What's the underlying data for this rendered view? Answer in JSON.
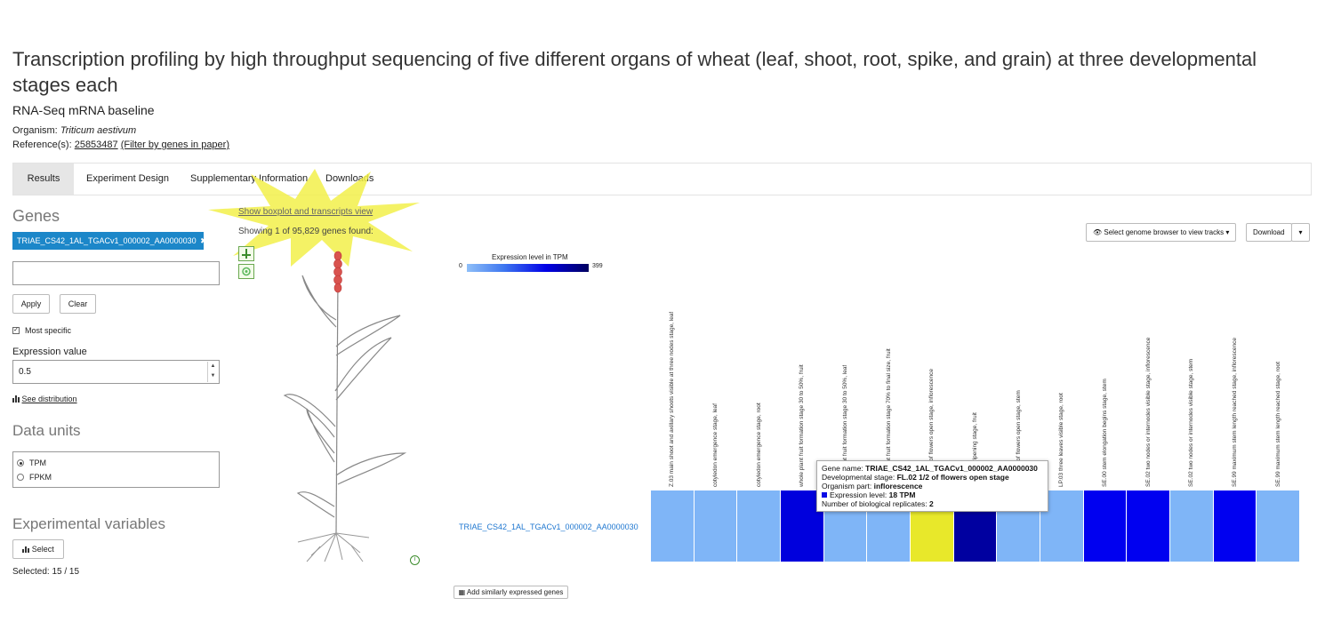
{
  "header": {
    "title": "Transcription profiling by high throughput sequencing of five different organs of wheat (leaf, shoot, root, spike, and grain) at three developmental stages each",
    "subtitle": "RNA-Seq mRNA baseline",
    "organism_label": "Organism:",
    "organism_value": "Triticum aestivum",
    "references_label": "Reference(s):",
    "reference_id": "25853487",
    "reference_filter": "(Filter by genes in paper)"
  },
  "tabs": [
    {
      "label": "Results",
      "active": true
    },
    {
      "label": "Experiment Design"
    },
    {
      "label": "Supplementary Information"
    },
    {
      "label": "Downloads"
    }
  ],
  "sidebar": {
    "genes_heading": "Genes",
    "gene_tag": "TRIAE_CS42_1AL_TGACv1_000002_AA0000030",
    "gene_tag_remove": "✖",
    "apply_label": "Apply",
    "clear_label": "Clear",
    "most_specific_label": "Most specific",
    "most_specific_checked": true,
    "expression_value_label": "Expression value",
    "expression_value": "0.5",
    "see_distribution": "See distribution",
    "data_units_heading": "Data units",
    "units": [
      {
        "label": "TPM",
        "selected": true
      },
      {
        "label": "FPKM",
        "selected": false
      }
    ],
    "experimental_variables_heading": "Experimental variables",
    "select_label": "Select",
    "selected_text": "Selected: 15 / 15"
  },
  "anatomogram": {
    "show_boxplot": "Show boxplot and transcripts view",
    "showing_text": "Showing 1 of 95,829 genes found:"
  },
  "legend": {
    "title": "Expression level in TPM",
    "min": "0",
    "max": "399"
  },
  "toolbar": {
    "genome_browser": "Select genome browser to view tracks",
    "download": "Download"
  },
  "heatmap": {
    "gene_row_label": "TRIAE_CS42_1AL_TGACv1_000002_AA0000030",
    "columns": [
      {
        "label": "Z.03 main shoot and axillary shoots visible at three nodes stage, leaf",
        "color": "#7fb5f7"
      },
      {
        "label": "cotyledon emergence stage, leaf",
        "color": "#7fb5f7"
      },
      {
        "label": "cotyledon emergence stage, root",
        "color": "#7fb5f7"
      },
      {
        "label": "whole plant fruit formation stage 30 to 50%, fruit",
        "color": "#0000dd"
      },
      {
        "label": "whole plant fruit formation stage 30 to 50%, leaf",
        "color": "#7fb5f7"
      },
      {
        "label": "whole plant fruit formation stage 70% to final size, fruit",
        "color": "#7fb5f7"
      },
      {
        "label": "FL.02 1/2 of flowers open stage, inflorescence",
        "color": "#e8e82a"
      },
      {
        "label": "plant fruit ripening stage, fruit",
        "color": "#0000a0"
      },
      {
        "label": "FL.02 1/2 of flowers open stage, stem",
        "color": "#7fb5f7"
      },
      {
        "label": "LP.03 three leaves visible stage, root",
        "color": "#7fb5f7"
      },
      {
        "label": "SE.00 stem elongation begins stage, stem",
        "color": "#0000f0"
      },
      {
        "label": "SE.02 two nodes or internodes visible stage, inflorescence",
        "color": "#0000f0"
      },
      {
        "label": "SE.02 two nodes or internodes visible stage, stem",
        "color": "#7fb5f7"
      },
      {
        "label": "SE.99 maximum stem length reached stage, inflorescence",
        "color": "#0000f0"
      },
      {
        "label": "SE.99 maximum stem length reached stage, root",
        "color": "#7fb5f7"
      }
    ],
    "add_similar": "Add similarly expressed genes"
  },
  "tooltip": {
    "gene_name_label": "Gene name:",
    "gene_name": "TRIAE_CS42_1AL_TGACv1_000002_AA0000030",
    "dev_stage_label": "Developmental stage:",
    "dev_stage": "FL.02 1/2 of flowers open stage",
    "organism_part_label": "Organism part:",
    "organism_part": "inflorescence",
    "expression_label": "Expression level:",
    "expression": "18 TPM",
    "replicates_label": "Number of biological replicates:",
    "replicates": "2"
  }
}
